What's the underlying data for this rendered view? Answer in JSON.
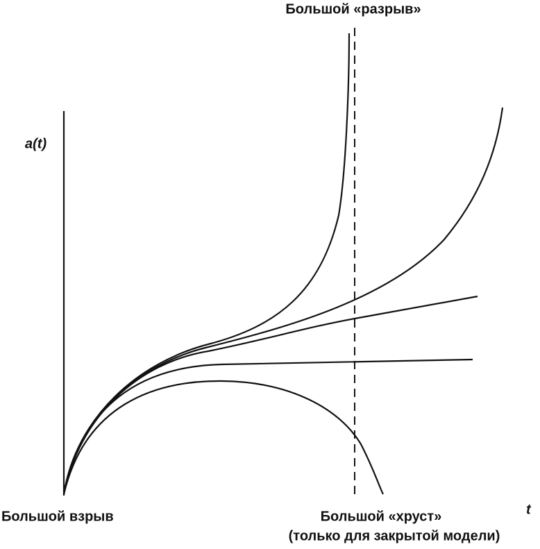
{
  "labels": {
    "big_rip": "Большой «разрыв»",
    "y_axis": "a(t)",
    "x_axis": "t",
    "big_bang": "Большой взрыв",
    "big_crunch": "Большой «хруст»",
    "big_crunch_note": "(только для закрытой модели)"
  }
}
